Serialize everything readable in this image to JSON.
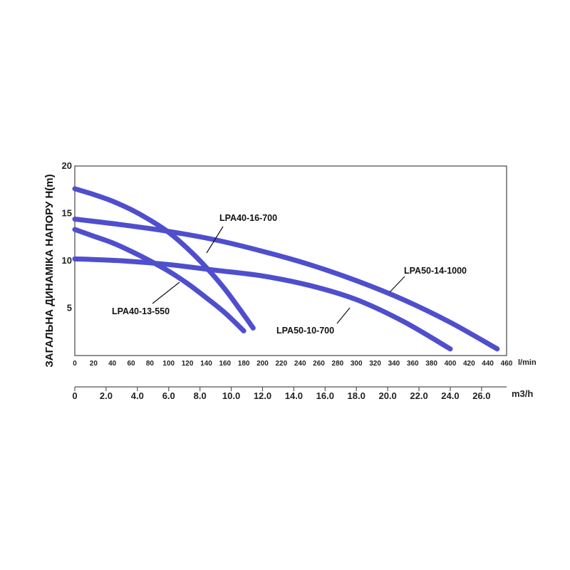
{
  "chart_data": {
    "type": "line",
    "ylabel": "ЗАГАЛЬНА ДИНАМІКА НАПОРУ H(m)",
    "xunit": "l/min",
    "x2unit": "m3/h",
    "xlim": [
      0,
      460
    ],
    "ylim": [
      0,
      20
    ],
    "x_ticks": [
      "0",
      "20",
      "40",
      "60",
      "80",
      "100",
      "120",
      "140",
      "160",
      "180",
      "200",
      "220",
      "240",
      "260",
      "280",
      "300",
      "320",
      "340",
      "360",
      "380",
      "400",
      "420",
      "440",
      "460"
    ],
    "y_ticks": [
      "20",
      "15",
      "10",
      "5"
    ],
    "x2_ticks": [
      "0",
      "2.0",
      "4.0",
      "6.0",
      "8.0",
      "10.0",
      "12.0",
      "14.0",
      "16.0",
      "18.0",
      "20.0",
      "22.0",
      "24.0",
      "26.0"
    ],
    "grid": false,
    "line_color": "#4f4fcd",
    "series": [
      {
        "name": "LPA40-16-700",
        "x": [
          0,
          20,
          40,
          60,
          80,
          100,
          120,
          140,
          160,
          180,
          190
        ],
        "y": [
          17.6,
          17.0,
          16.3,
          15.4,
          14.3,
          13.0,
          11.3,
          9.3,
          7.0,
          4.3,
          2.9
        ]
      },
      {
        "name": "LPA40-13-550",
        "x": [
          0,
          20,
          40,
          60,
          80,
          100,
          120,
          140,
          160,
          180
        ],
        "y": [
          13.3,
          12.6,
          11.9,
          11.0,
          10.0,
          8.9,
          7.6,
          6.1,
          4.5,
          2.6
        ]
      },
      {
        "name": "LPA50-14-1000",
        "x": [
          0,
          50,
          100,
          150,
          200,
          250,
          300,
          350,
          400,
          450
        ],
        "y": [
          14.4,
          13.8,
          13.1,
          12.2,
          11.0,
          9.6,
          7.9,
          5.9,
          3.5,
          0.7
        ]
      },
      {
        "name": "LPA50-10-700",
        "x": [
          0,
          50,
          100,
          150,
          200,
          250,
          300,
          350,
          400
        ],
        "y": [
          10.2,
          10.0,
          9.6,
          9.0,
          8.4,
          7.4,
          5.9,
          3.6,
          0.7
        ]
      }
    ]
  }
}
